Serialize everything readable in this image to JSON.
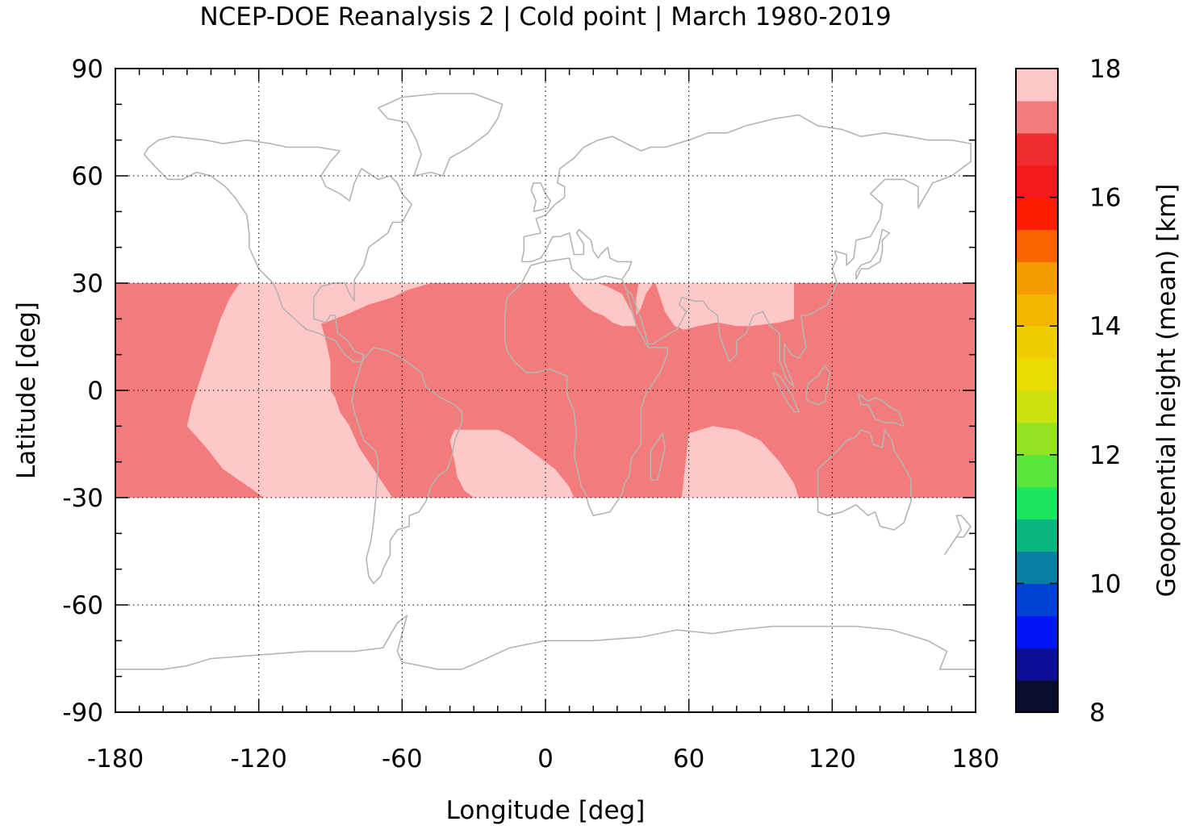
{
  "chart_data": {
    "type": "heatmap",
    "title": "NCEP-DOE Reanalysis 2 | Cold point | March 1980-2019",
    "xlabel": "Longitude [deg]",
    "ylabel": "Latitude [deg]",
    "xlim": [
      -180,
      180
    ],
    "ylim": [
      -90,
      90
    ],
    "xticks": [
      -180,
      -120,
      -60,
      0,
      60,
      120,
      180
    ],
    "xtick_labels": [
      "-180",
      "-120",
      "-60",
      "0",
      "60",
      "120",
      "180"
    ],
    "yticks": [
      90,
      60,
      30,
      0,
      -30,
      -60,
      -90
    ],
    "ytick_labels": [
      "90",
      "60",
      "30",
      "0",
      "-30",
      "-60",
      "-90"
    ],
    "grid": true,
    "data_lat_range": [
      -30,
      30
    ],
    "values_description_levels_km": {
      "light": 17.75,
      "dark": 17.25
    },
    "light_regions": [
      {
        "name": "east-pacific-tongue",
        "polygon": [
          [
            -128,
            30
          ],
          [
            -100,
            30
          ],
          [
            -98,
            28
          ],
          [
            -96,
            24
          ],
          [
            -94,
            19
          ],
          [
            -92,
            14
          ],
          [
            -90,
            8
          ],
          [
            -90,
            0
          ],
          [
            -88,
            -2
          ],
          [
            -86,
            -6
          ],
          [
            -82,
            -10
          ],
          [
            -78,
            -16
          ],
          [
            -72,
            -22
          ],
          [
            -68,
            -26
          ],
          [
            -64,
            -30
          ],
          [
            -118,
            -30
          ],
          [
            -122,
            -28
          ],
          [
            -135,
            -22
          ],
          [
            -142,
            -16
          ],
          [
            -150,
            -10
          ],
          [
            -148,
            -4
          ],
          [
            -144,
            4
          ],
          [
            -140,
            12
          ],
          [
            -136,
            20
          ],
          [
            -132,
            26
          ]
        ]
      },
      {
        "name": "caribbean-atlantic-north",
        "polygon": [
          [
            -116,
            30
          ],
          [
            -48,
            30
          ],
          [
            -58,
            28
          ],
          [
            -64,
            26
          ],
          [
            -74,
            24
          ],
          [
            -84,
            21
          ],
          [
            -92,
            19
          ],
          [
            -98,
            18
          ],
          [
            -108,
            20
          ],
          [
            -114,
            26
          ]
        ]
      },
      {
        "name": "south-atlantic-pool",
        "polygon": [
          [
            -38,
            -11
          ],
          [
            -30,
            -11
          ],
          [
            -20,
            -11
          ],
          [
            -14,
            -13
          ],
          [
            -8,
            -16
          ],
          [
            -2,
            -19
          ],
          [
            4,
            -22
          ],
          [
            10,
            -27
          ],
          [
            12,
            -30
          ],
          [
            -30,
            -30
          ],
          [
            -34,
            -28
          ],
          [
            -37,
            -24
          ],
          [
            -38,
            -20
          ],
          [
            -40,
            -14
          ]
        ]
      },
      {
        "name": "sahara-patch",
        "polygon": [
          [
            10,
            30
          ],
          [
            22,
            30
          ],
          [
            26,
            29
          ],
          [
            32,
            27
          ],
          [
            36,
            22
          ],
          [
            38,
            18
          ],
          [
            32,
            18
          ],
          [
            28,
            19
          ],
          [
            24,
            21
          ],
          [
            20,
            22
          ],
          [
            16,
            24
          ],
          [
            12,
            27
          ],
          [
            10,
            29
          ]
        ]
      },
      {
        "name": "red-sea-arabia",
        "polygon": [
          [
            39,
            30
          ],
          [
            45,
            30
          ],
          [
            42,
            27
          ],
          [
            40,
            23
          ],
          [
            38,
            21
          ],
          [
            38,
            26
          ]
        ]
      },
      {
        "name": "arabia-india-north",
        "polygon": [
          [
            46,
            30
          ],
          [
            104,
            30
          ],
          [
            104,
            20
          ],
          [
            98,
            19
          ],
          [
            86,
            18
          ],
          [
            80,
            18
          ],
          [
            72,
            19
          ],
          [
            64,
            18
          ],
          [
            58,
            17
          ],
          [
            54,
            18
          ],
          [
            50,
            22
          ],
          [
            48,
            26
          ]
        ]
      },
      {
        "name": "south-indian-ocean-pool",
        "polygon": [
          [
            60,
            -12
          ],
          [
            70,
            -10
          ],
          [
            80,
            -11
          ],
          [
            90,
            -14
          ],
          [
            98,
            -20
          ],
          [
            104,
            -26
          ],
          [
            106,
            -30
          ],
          [
            57,
            -30
          ],
          [
            58,
            -24
          ],
          [
            59,
            -18
          ]
        ]
      }
    ],
    "colorbar": {
      "label": "Geopotential height (mean) [km]",
      "range": [
        8,
        18
      ],
      "ticks": [
        8,
        10,
        12,
        14,
        16,
        18
      ],
      "tick_labels": [
        "8",
        "10",
        "12",
        "14",
        "16",
        "18"
      ],
      "step": 0.5,
      "colors": [
        "#0b0d2e",
        "#0a0f95",
        "#0016f5",
        "#0042d2",
        "#0a7fa4",
        "#0cb482",
        "#19e65c",
        "#5be63d",
        "#94e223",
        "#cde010",
        "#e8dc00",
        "#efcc00",
        "#f3b500",
        "#f79c00",
        "#fb6300",
        "#fc1d00",
        "#f5181d",
        "#ee2d30",
        "#f47b7b",
        "#fec7c8"
      ]
    }
  }
}
